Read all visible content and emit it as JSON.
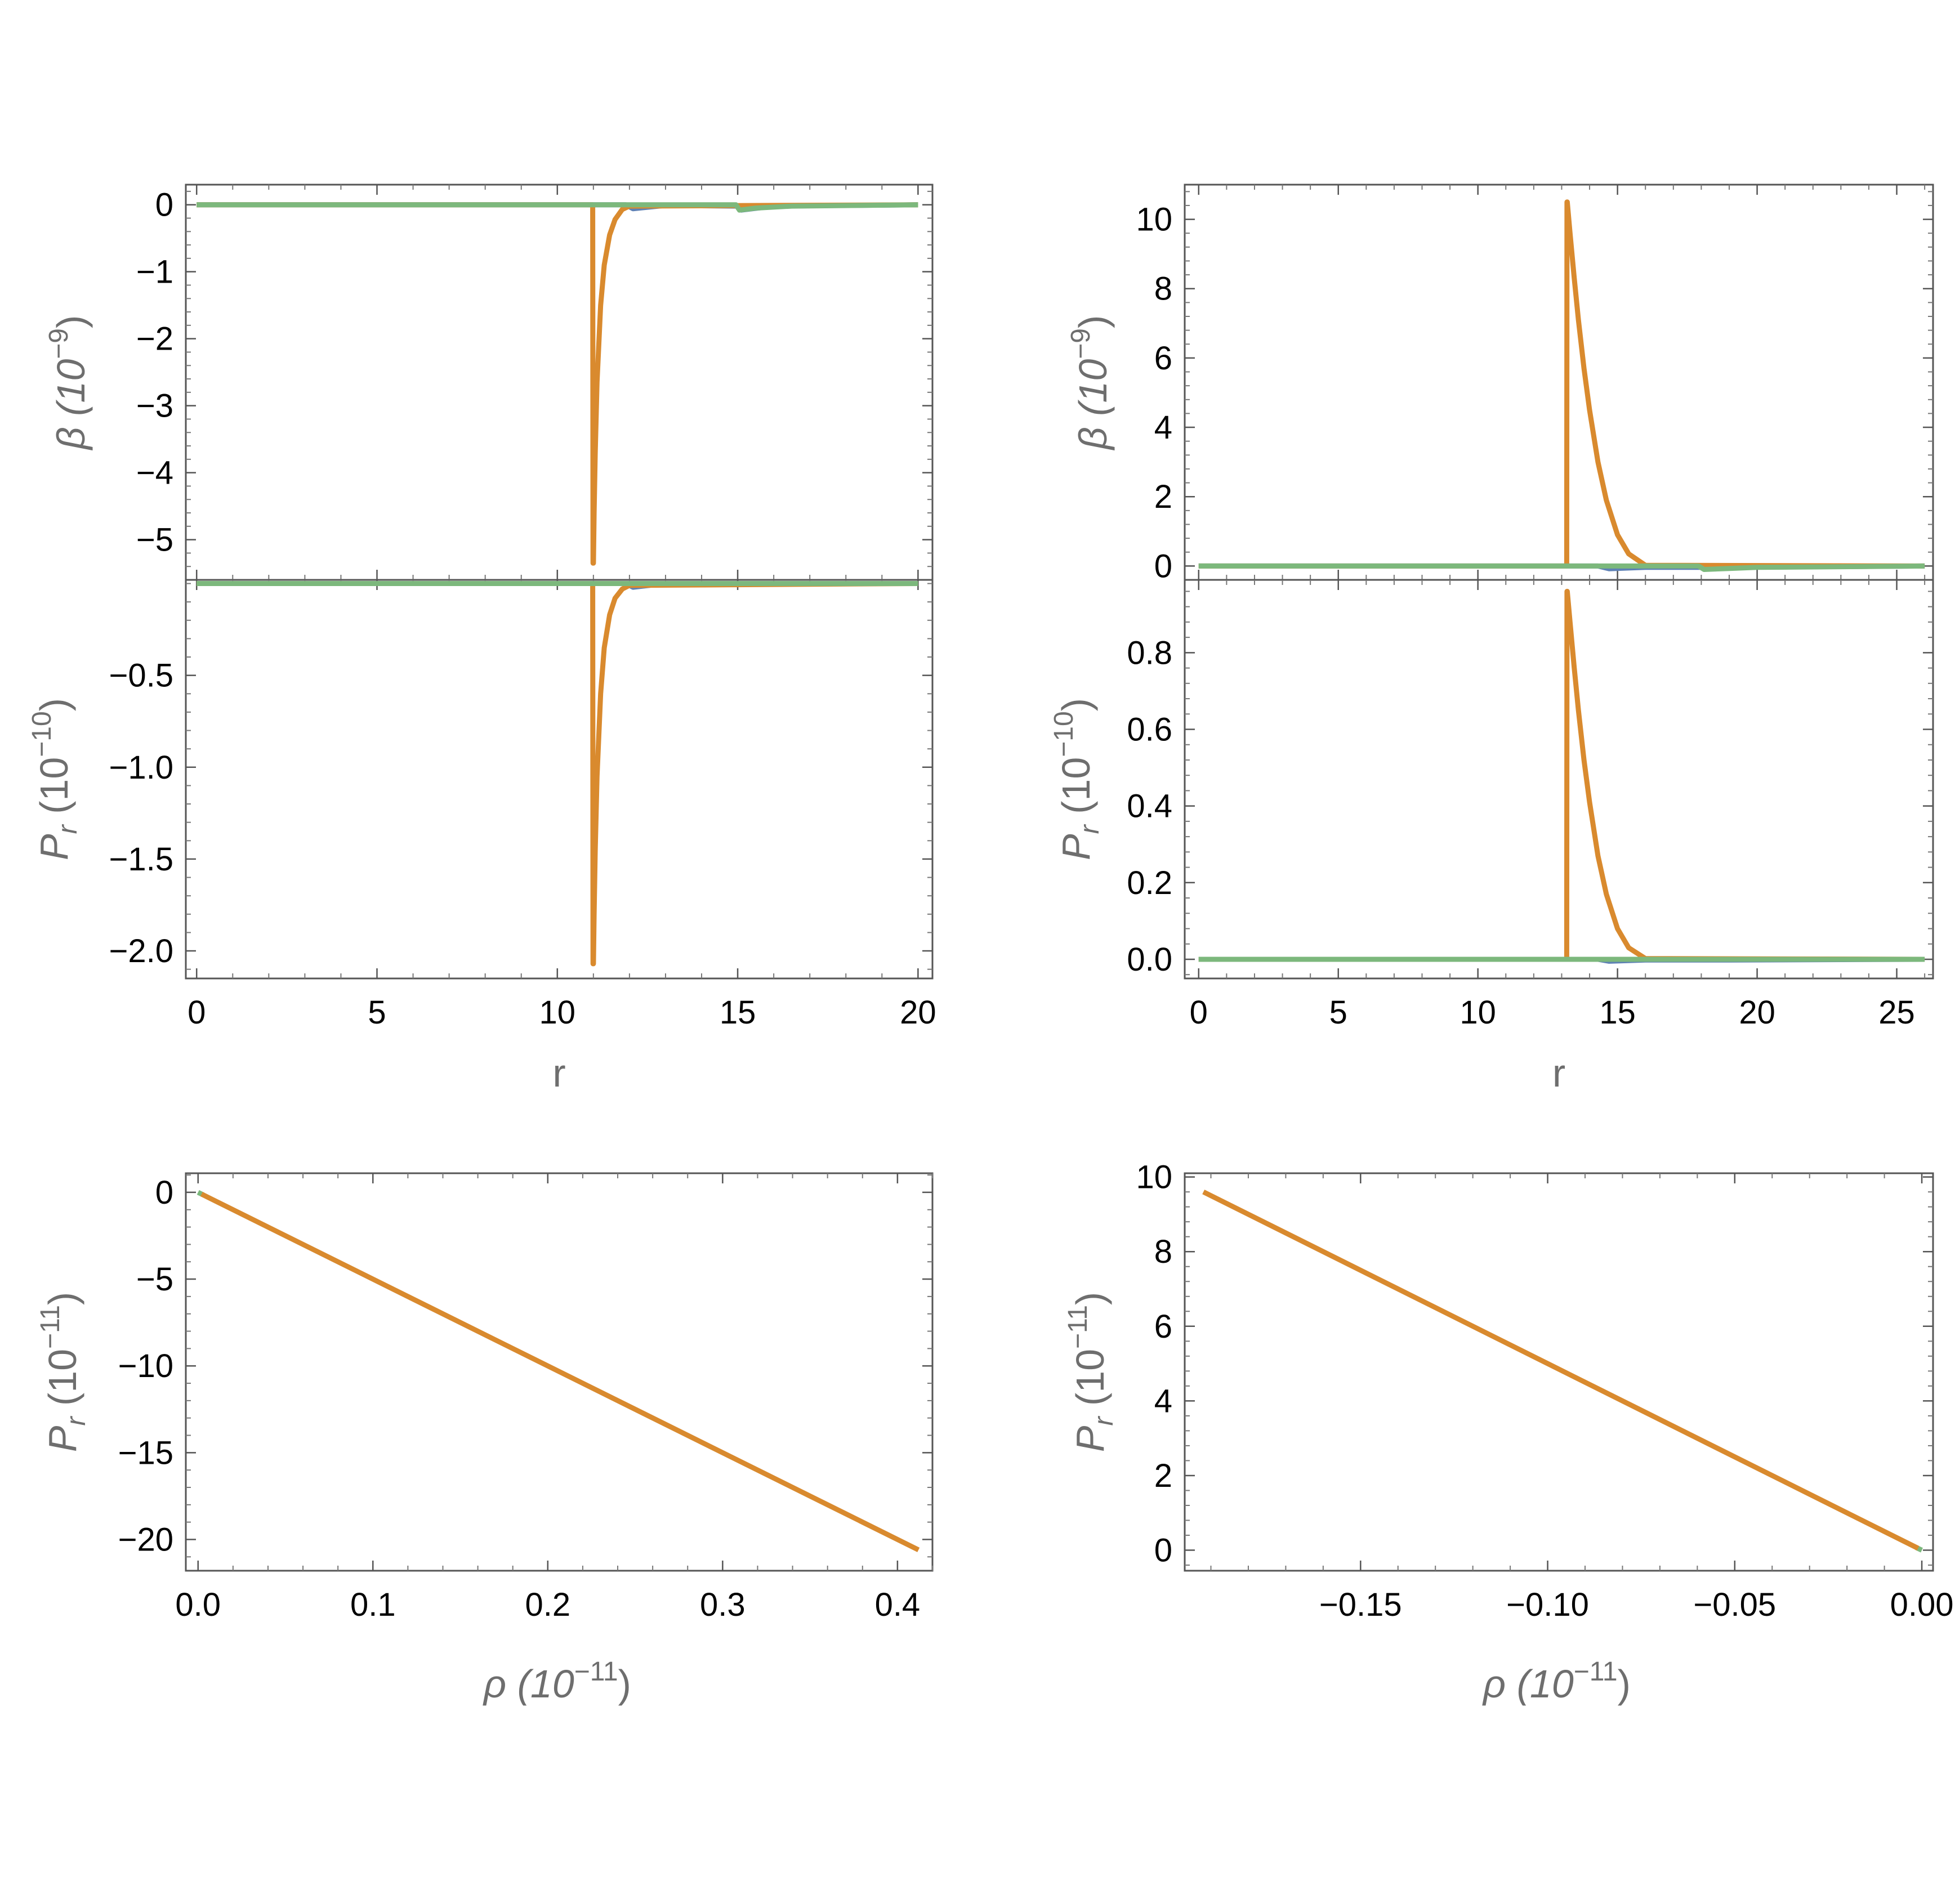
{
  "colors": {
    "blue": "#5e81b5",
    "orange": "#e19c24",
    "green": "#8fb032",
    "orange_curve": "#d98a2e",
    "green_curve": "#7cb87c",
    "frame": "#555555"
  },
  "chart_data": [
    {
      "id": "top-left-beta",
      "type": "line",
      "xlabel": "",
      "ylabel_main": "β (10",
      "ylabel_exp": "−9",
      "ylabel_end": ")",
      "xlim": [
        -0.3,
        20.4
      ],
      "ylim": [
        -5.6,
        0.3
      ],
      "yticks": [
        0,
        -1,
        -2,
        -3,
        -4,
        -5
      ],
      "ytick_labels": [
        "0",
        "−1",
        "−2",
        "−3",
        "−4",
        "−5"
      ],
      "grid": false,
      "series": [
        {
          "color": "#5e81b5",
          "x": [
            0,
            11.9,
            12.1,
            13,
            15,
            15.1,
            16,
            20
          ],
          "y": [
            0,
            0,
            -0.06,
            -0.01,
            -0.02,
            -0.08,
            -0.02,
            0
          ]
        },
        {
          "color": "#d98a2e",
          "x": [
            0,
            10.98,
            10.99,
            11.0,
            11.02,
            11.05,
            11.1,
            11.2,
            11.3,
            11.45,
            11.6,
            11.8,
            12.0,
            20
          ],
          "y": [
            0,
            0,
            -5.35,
            -5.35,
            -4.6,
            -3.7,
            -2.65,
            -1.5,
            -0.9,
            -0.45,
            -0.22,
            -0.07,
            -0.02,
            0
          ]
        },
        {
          "color": "#7cb87c",
          "x": [
            0,
            14.95,
            15.05,
            15.5,
            16.5,
            20
          ],
          "y": [
            0,
            0,
            -0.08,
            -0.05,
            -0.02,
            0
          ]
        }
      ]
    },
    {
      "id": "mid-left-pr",
      "type": "line",
      "xlabel": "r",
      "ylabel_main": "P",
      "ylabel_sub": "r",
      "ylabel_tail": " (10",
      "ylabel_exp": "−10",
      "ylabel_end": ")",
      "xlim": [
        -0.3,
        20.4
      ],
      "ylim": [
        -2.15,
        0.02
      ],
      "xticks": [
        0,
        5,
        10,
        15,
        20
      ],
      "xtick_labels": [
        "0",
        "5",
        "10",
        "15",
        "20"
      ],
      "yticks": [
        -0.5,
        -1.0,
        -1.5,
        -2.0
      ],
      "ytick_labels": [
        "−0.5",
        "−1.0",
        "−1.5",
        "−2.0"
      ],
      "grid": false,
      "series": [
        {
          "color": "#5e81b5",
          "x": [
            0,
            11.9,
            12.1,
            13,
            20
          ],
          "y": [
            0,
            0,
            -0.02,
            0,
            0
          ]
        },
        {
          "color": "#d98a2e",
          "x": [
            0,
            10.98,
            10.99,
            11.0,
            11.02,
            11.05,
            11.1,
            11.2,
            11.3,
            11.45,
            11.6,
            11.8,
            12.0,
            20
          ],
          "y": [
            0,
            0,
            -2.07,
            -2.07,
            -1.8,
            -1.45,
            -1.05,
            -0.6,
            -0.35,
            -0.17,
            -0.08,
            -0.03,
            -0.01,
            0
          ]
        },
        {
          "color": "#7cb87c",
          "x": [
            0,
            20
          ],
          "y": [
            0,
            0
          ]
        }
      ]
    },
    {
      "id": "top-right-beta",
      "type": "line",
      "xlabel": "",
      "ylabel_main": "β (10",
      "ylabel_exp": "−9",
      "ylabel_end": ")",
      "xlim": [
        -0.5,
        26.3
      ],
      "ylim": [
        -0.4,
        11.0
      ],
      "yticks": [
        0,
        2,
        4,
        6,
        8,
        10
      ],
      "ytick_labels": [
        "0",
        "2",
        "4",
        "6",
        "8",
        "10"
      ],
      "grid": false,
      "series": [
        {
          "color": "#5e81b5",
          "x": [
            0,
            14.3,
            14.7,
            16,
            19,
            20,
            26
          ],
          "y": [
            0,
            0,
            -0.08,
            -0.04,
            -0.04,
            -0.03,
            0
          ]
        },
        {
          "color": "#d98a2e",
          "x": [
            0,
            13.18,
            13.19,
            13.2,
            13.3,
            13.45,
            13.6,
            13.8,
            14.0,
            14.3,
            14.6,
            15.0,
            15.4,
            16.0,
            26
          ],
          "y": [
            0,
            0,
            10.5,
            10.5,
            9.6,
            8.3,
            7.1,
            5.7,
            4.5,
            3.0,
            1.9,
            0.9,
            0.35,
            0.02,
            0
          ]
        },
        {
          "color": "#7cb87c",
          "x": [
            0,
            17.9,
            18.1,
            19,
            20,
            26
          ],
          "y": [
            0,
            0,
            -0.1,
            -0.07,
            -0.04,
            0
          ]
        }
      ]
    },
    {
      "id": "mid-right-pr",
      "type": "line",
      "xlabel": "r",
      "ylabel_main": "P",
      "ylabel_sub": "r",
      "ylabel_tail": " (10",
      "ylabel_exp": "−10",
      "ylabel_end": ")",
      "xlim": [
        -0.5,
        26.3
      ],
      "ylim": [
        -0.05,
        0.99
      ],
      "xticks": [
        0,
        5,
        10,
        15,
        20,
        25
      ],
      "xtick_labels": [
        "0",
        "5",
        "10",
        "15",
        "20",
        "25"
      ],
      "yticks": [
        0.0,
        0.2,
        0.4,
        0.6,
        0.8
      ],
      "ytick_labels": [
        "0.0",
        "0.2",
        "0.4",
        "0.6",
        "0.8"
      ],
      "grid": false,
      "series": [
        {
          "color": "#5e81b5",
          "x": [
            0,
            14.3,
            14.7,
            16,
            19,
            26
          ],
          "y": [
            0,
            0,
            -0.005,
            -0.002,
            -0.002,
            0
          ]
        },
        {
          "color": "#d98a2e",
          "x": [
            0,
            13.18,
            13.19,
            13.2,
            13.3,
            13.45,
            13.6,
            13.8,
            14.0,
            14.3,
            14.6,
            15.0,
            15.4,
            16.0,
            26
          ],
          "y": [
            0,
            0,
            0.96,
            0.96,
            0.88,
            0.76,
            0.65,
            0.52,
            0.41,
            0.27,
            0.17,
            0.08,
            0.03,
            0.002,
            0
          ]
        },
        {
          "color": "#7cb87c",
          "x": [
            0,
            26
          ],
          "y": [
            0,
            0
          ]
        }
      ]
    },
    {
      "id": "bottom-left-pr-rho",
      "type": "line",
      "xlabel_main": "ρ (10",
      "xlabel_exp": "−11",
      "xlabel_end": ")",
      "ylabel_main": "P",
      "ylabel_sub": "r",
      "ylabel_tail": " (10",
      "ylabel_exp": "−11",
      "ylabel_end": ")",
      "xlim": [
        -0.007,
        0.42
      ],
      "ylim": [
        -21.8,
        1.1
      ],
      "xticks": [
        0.0,
        0.1,
        0.2,
        0.3,
        0.4
      ],
      "xtick_labels": [
        "0.0",
        "0.1",
        "0.2",
        "0.3",
        "0.4"
      ],
      "yticks": [
        0,
        -5,
        -10,
        -15,
        -20
      ],
      "ytick_labels": [
        "0",
        "−5",
        "−10",
        "−15",
        "−20"
      ],
      "grid": false,
      "series": [
        {
          "color": "#7cb87c",
          "x": [
            0,
            0.003
          ],
          "y": [
            0,
            -0.15
          ]
        },
        {
          "color": "#d98a2e",
          "x": [
            0.002,
            0.412
          ],
          "y": [
            -0.1,
            -20.6
          ]
        }
      ]
    },
    {
      "id": "bottom-right-pr-rho",
      "type": "line",
      "xlabel_main": "ρ (10",
      "xlabel_exp": "−11",
      "xlabel_end": ")",
      "ylabel_main": "P",
      "ylabel_sub": "r",
      "ylabel_tail": " (10",
      "ylabel_exp": "−11",
      "ylabel_end": ")",
      "xlim": [
        -0.197,
        0.003
      ],
      "ylim": [
        -0.55,
        10.1
      ],
      "xticks": [
        -0.15,
        -0.1,
        -0.05,
        0.0
      ],
      "xtick_labels": [
        "−0.15",
        "−0.10",
        "−0.05",
        "0.00"
      ],
      "yticks": [
        0,
        2,
        4,
        6,
        8,
        10
      ],
      "ytick_labels": [
        "0",
        "2",
        "4",
        "6",
        "8",
        "10"
      ],
      "grid": false,
      "series": [
        {
          "color": "#7cb87c",
          "x": [
            -0.0015,
            0.0
          ],
          "y": [
            0.07,
            0
          ]
        },
        {
          "color": "#d98a2e",
          "x": [
            -0.192,
            -0.001
          ],
          "y": [
            9.6,
            0.05
          ]
        }
      ]
    }
  ]
}
